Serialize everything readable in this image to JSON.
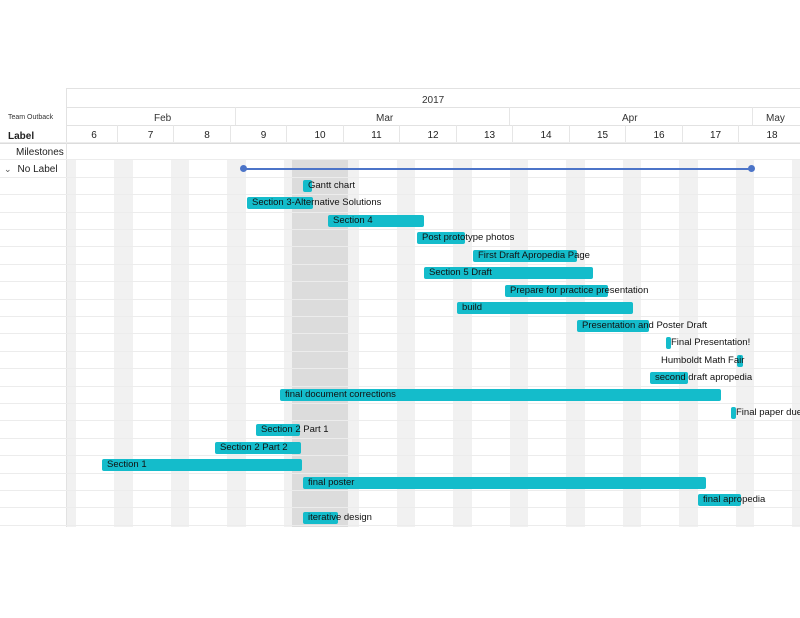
{
  "header": {
    "project_name": "Team Outback",
    "year": "2017",
    "months": [
      "Feb",
      "Mar",
      "Apr",
      "May"
    ],
    "weeks": [
      "6",
      "7",
      "8",
      "9",
      "10",
      "11",
      "12",
      "13",
      "14",
      "15",
      "16",
      "17",
      "18"
    ]
  },
  "left_panel": {
    "label_header": "Label",
    "milestones_label": "Milestones",
    "group_label": "No Label"
  },
  "colors": {
    "task_bar": "#14bccb",
    "milestone_line": "#4c74c8",
    "highlight_week": "#dcdcdc"
  },
  "tasks": [
    {
      "name": "Gantt chart"
    },
    {
      "name": "Section 3-Alternative Solutions"
    },
    {
      "name": "Section 4"
    },
    {
      "name": "Post prototype photos"
    },
    {
      "name": "First Draft Apropedia Page"
    },
    {
      "name": "Section 5 Draft"
    },
    {
      "name": "Prepare for practice presentation"
    },
    {
      "name": "build"
    },
    {
      "name": "Presentation and Poster Draft"
    },
    {
      "name": "Final Presentation!"
    },
    {
      "name": "Humboldt Math Fair"
    },
    {
      "name": "second draft apropedia"
    },
    {
      "name": "final document corrections"
    },
    {
      "name": "Final paper due"
    },
    {
      "name": "Section 2 Part 1"
    },
    {
      "name": "Section 2 Part 2"
    },
    {
      "name": "Section 1"
    },
    {
      "name": "final poster"
    },
    {
      "name": "final apropedia"
    },
    {
      "name": "iterative design"
    }
  ]
}
